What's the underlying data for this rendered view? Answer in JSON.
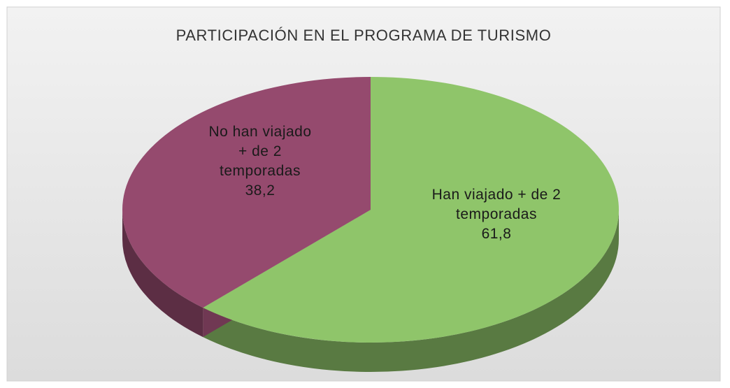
{
  "chart_data": {
    "type": "pie",
    "title": "PARTICIPACIÓN EN EL PROGRAMA DE TURISMO",
    "categories": [
      "Han viajado + de 2 temporadas",
      "No han viajado + de 2 temporadas"
    ],
    "values": [
      61.8,
      38.2
    ],
    "value_labels": [
      "61,8",
      "38,2"
    ],
    "colors": [
      "#8fc56a",
      "#954a6e"
    ]
  }
}
